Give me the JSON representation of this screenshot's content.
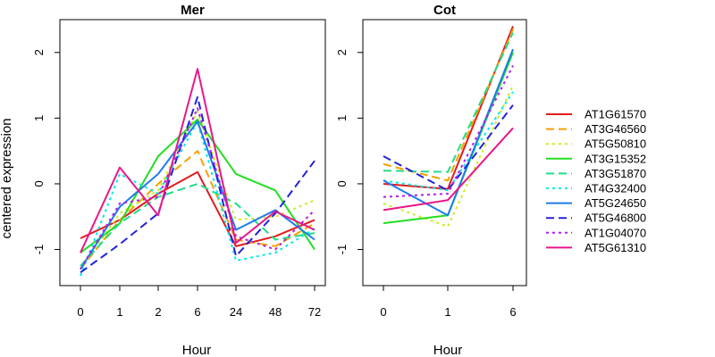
{
  "figure": {
    "ylabel": "centered expression",
    "xlabel": "Hour"
  },
  "chart_data": [
    {
      "type": "line",
      "title": "Mer",
      "xlabel": "Hour",
      "ylabel": "centered expression",
      "categories": [
        "0",
        "1",
        "2",
        "6",
        "24",
        "48",
        "72"
      ],
      "ylim": [
        -1.55,
        2.5
      ],
      "yticks": [
        -1,
        0,
        1,
        2
      ],
      "grid": false,
      "series": [
        {
          "name": "AT1G61570",
          "color": "#e31a1c",
          "dash": "solid",
          "values": [
            -0.83,
            -0.55,
            -0.15,
            0.18,
            -0.95,
            -0.8,
            -0.55
          ]
        },
        {
          "name": "AT3G46560",
          "color": "#f5a000",
          "dash": "long",
          "values": [
            -1.3,
            -0.55,
            0.0,
            0.5,
            -0.85,
            -0.95,
            -0.6
          ]
        },
        {
          "name": "AT5G50810",
          "color": "#c8ee1e",
          "dash": "dot",
          "values": [
            -1.3,
            -0.45,
            -0.1,
            1.1,
            -0.55,
            -0.5,
            -0.25
          ]
        },
        {
          "name": "AT3G15352",
          "color": "#22dd22",
          "dash": "solid",
          "values": [
            -1.05,
            -0.6,
            0.42,
            0.98,
            0.15,
            -0.1,
            -1.0
          ]
        },
        {
          "name": "AT3G51870",
          "color": "#22dd88",
          "dash": "long",
          "values": [
            -1.25,
            -0.6,
            -0.2,
            0.0,
            -0.3,
            -0.85,
            -0.75
          ]
        },
        {
          "name": "AT4G32400",
          "color": "#00e8e8",
          "dash": "dot",
          "values": [
            -1.4,
            0.15,
            -0.15,
            0.95,
            -1.17,
            -1.05,
            -0.68
          ]
        },
        {
          "name": "AT5G24650",
          "color": "#1e7ce8",
          "dash": "solid",
          "values": [
            -1.3,
            -0.35,
            0.15,
            0.95,
            -0.7,
            -0.4,
            -0.85
          ]
        },
        {
          "name": "AT5G46800",
          "color": "#2222dd",
          "dash": "long",
          "values": [
            -1.35,
            -0.92,
            -0.45,
            1.32,
            -1.1,
            -0.45,
            0.35
          ]
        },
        {
          "name": "AT1G04070",
          "color": "#b01ee8",
          "dash": "dot",
          "values": [
            -1.3,
            -0.3,
            -0.2,
            1.15,
            -0.8,
            -1.0,
            -0.4
          ]
        },
        {
          "name": "AT5G61310",
          "color": "#e8178a",
          "dash": "solid",
          "values": [
            -1.05,
            0.25,
            -0.48,
            1.75,
            -0.9,
            -0.42,
            -0.7
          ]
        }
      ]
    },
    {
      "type": "line",
      "title": "Cot",
      "xlabel": "Hour",
      "ylabel": "",
      "categories": [
        "0",
        "1",
        "6"
      ],
      "ylim": [
        -1.55,
        2.5
      ],
      "yticks": [
        -1,
        0,
        1,
        2
      ],
      "grid": false,
      "series": [
        {
          "name": "AT1G61570",
          "color": "#e31a1c",
          "dash": "solid",
          "values": [
            0.0,
            -0.08,
            2.4
          ]
        },
        {
          "name": "AT3G46560",
          "color": "#f5a000",
          "dash": "long",
          "values": [
            0.3,
            0.05,
            2.35
          ]
        },
        {
          "name": "AT5G50810",
          "color": "#c8ee1e",
          "dash": "dot",
          "values": [
            -0.3,
            -0.65,
            1.5
          ]
        },
        {
          "name": "AT3G15352",
          "color": "#22dd22",
          "dash": "solid",
          "values": [
            -0.6,
            -0.48,
            2.0
          ]
        },
        {
          "name": "AT3G51870",
          "color": "#22dd88",
          "dash": "long",
          "values": [
            0.2,
            0.18,
            2.3
          ]
        },
        {
          "name": "AT4G32400",
          "color": "#00e8e8",
          "dash": "dot",
          "values": [
            0.05,
            -0.1,
            1.4
          ]
        },
        {
          "name": "AT5G24650",
          "color": "#1e7ce8",
          "dash": "solid",
          "values": [
            0.05,
            -0.48,
            2.05
          ]
        },
        {
          "name": "AT5G46800",
          "color": "#2222dd",
          "dash": "long",
          "values": [
            0.42,
            -0.1,
            1.2
          ]
        },
        {
          "name": "AT1G04070",
          "color": "#b01ee8",
          "dash": "dot",
          "values": [
            -0.2,
            -0.15,
            1.8
          ]
        },
        {
          "name": "AT5G61310",
          "color": "#e8178a",
          "dash": "solid",
          "values": [
            -0.4,
            -0.25,
            0.85
          ]
        }
      ]
    }
  ],
  "legend": {
    "placement": "right",
    "entries": [
      "AT1G61570",
      "AT3G46560",
      "AT5G50810",
      "AT3G15352",
      "AT3G51870",
      "AT4G32400",
      "AT5G24650",
      "AT5G46800",
      "AT1G04070",
      "AT5G61310"
    ]
  }
}
